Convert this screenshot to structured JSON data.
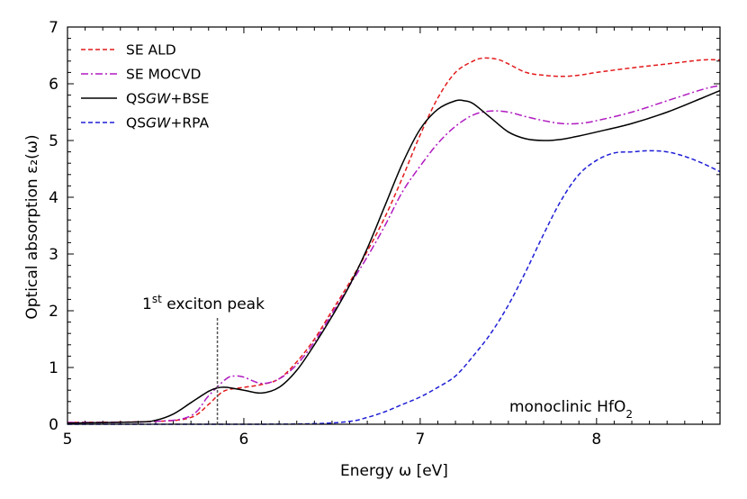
{
  "chart_data": {
    "type": "line",
    "title": "",
    "xlabel": "Energy ω [eV]",
    "ylabel": "Optical absorption ε₂(ω)",
    "xlim": [
      5.0,
      8.7
    ],
    "ylim": [
      0,
      7
    ],
    "x_major_ticks": [
      5,
      6,
      7,
      8
    ],
    "x_tick_labels": [
      "5",
      "6",
      "7",
      "8"
    ],
    "y_major_ticks": [
      0,
      1,
      2,
      3,
      4,
      5,
      6,
      7
    ],
    "y_tick_labels": [
      "0",
      "1",
      "2",
      "3",
      "4",
      "5",
      "6",
      "7"
    ],
    "grid": false,
    "legend_position": "top-left",
    "series": [
      {
        "name": "SE ALD",
        "color": "#e31a1c",
        "style": "dashed",
        "x": [
          5.0,
          5.5,
          5.7,
          5.8,
          5.85,
          5.9,
          6.0,
          6.1,
          6.2,
          6.3,
          6.4,
          6.5,
          6.6,
          6.7,
          6.8,
          6.9,
          7.0,
          7.1,
          7.2,
          7.3,
          7.35,
          7.4,
          7.45,
          7.5,
          7.6,
          7.7,
          7.8,
          7.9,
          8.0,
          8.2,
          8.4,
          8.6,
          8.7
        ],
        "y": [
          0.03,
          0.05,
          0.12,
          0.35,
          0.5,
          0.6,
          0.65,
          0.7,
          0.8,
          1.1,
          1.5,
          2.0,
          2.5,
          3.05,
          3.65,
          4.35,
          5.1,
          5.75,
          6.2,
          6.4,
          6.45,
          6.45,
          6.42,
          6.35,
          6.2,
          6.15,
          6.13,
          6.15,
          6.2,
          6.28,
          6.35,
          6.42,
          6.42
        ]
      },
      {
        "name": "SE MOCVD",
        "color": "#b01bc0",
        "style": "dashdot",
        "x": [
          5.0,
          5.5,
          5.7,
          5.8,
          5.9,
          5.95,
          6.0,
          6.1,
          6.2,
          6.3,
          6.4,
          6.5,
          6.6,
          6.7,
          6.8,
          6.9,
          7.0,
          7.1,
          7.2,
          7.3,
          7.4,
          7.5,
          7.6,
          7.7,
          7.8,
          7.9,
          8.0,
          8.2,
          8.4,
          8.6,
          8.7
        ],
        "y": [
          0.03,
          0.05,
          0.15,
          0.5,
          0.8,
          0.85,
          0.83,
          0.72,
          0.8,
          1.05,
          1.45,
          1.95,
          2.45,
          2.95,
          3.5,
          4.1,
          4.55,
          4.95,
          5.25,
          5.45,
          5.52,
          5.5,
          5.42,
          5.35,
          5.3,
          5.3,
          5.35,
          5.5,
          5.7,
          5.9,
          5.97
        ]
      },
      {
        "name": "QSGW+BSE",
        "color": "#000000",
        "style": "solid",
        "x": [
          5.0,
          5.4,
          5.5,
          5.6,
          5.7,
          5.8,
          5.85,
          5.9,
          6.0,
          6.1,
          6.2,
          6.3,
          6.4,
          6.5,
          6.6,
          6.7,
          6.8,
          6.9,
          7.0,
          7.1,
          7.2,
          7.25,
          7.3,
          7.4,
          7.5,
          7.6,
          7.7,
          7.8,
          7.9,
          8.0,
          8.2,
          8.4,
          8.6,
          8.7
        ],
        "y": [
          0.02,
          0.04,
          0.07,
          0.18,
          0.38,
          0.58,
          0.64,
          0.65,
          0.6,
          0.55,
          0.65,
          0.95,
          1.4,
          1.9,
          2.45,
          3.1,
          3.85,
          4.6,
          5.2,
          5.55,
          5.7,
          5.7,
          5.65,
          5.4,
          5.15,
          5.03,
          5.0,
          5.02,
          5.08,
          5.15,
          5.3,
          5.5,
          5.75,
          5.88
        ]
      },
      {
        "name": "QSGW+RPA",
        "color": "#1f1fd6",
        "style": "dashed",
        "x": [
          5.0,
          6.0,
          6.4,
          6.6,
          6.7,
          6.8,
          6.9,
          7.0,
          7.1,
          7.2,
          7.3,
          7.4,
          7.5,
          7.6,
          7.7,
          7.8,
          7.9,
          8.0,
          8.1,
          8.2,
          8.3,
          8.4,
          8.5,
          8.6,
          8.7
        ],
        "y": [
          0.0,
          0.0,
          0.01,
          0.05,
          0.12,
          0.22,
          0.35,
          0.48,
          0.65,
          0.85,
          1.2,
          1.6,
          2.1,
          2.7,
          3.35,
          3.95,
          4.4,
          4.65,
          4.78,
          4.8,
          4.82,
          4.8,
          4.72,
          4.6,
          4.45
        ]
      }
    ],
    "annotations": [
      {
        "text_base": "1",
        "text_sup": "st",
        "text_rest": " exciton peak",
        "marker_x": 5.85,
        "marker_style": "dotted vertical line"
      },
      {
        "text_base": "monoclinic HfO",
        "text_sub": "2"
      }
    ]
  }
}
